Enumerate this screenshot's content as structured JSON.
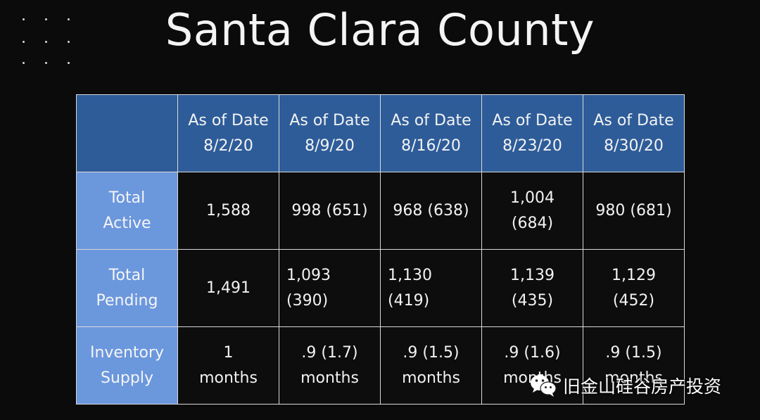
{
  "title": "Santa Clara County",
  "table": {
    "headers": [
      "As of Date\n8/2/20",
      "As of Date\n8/9/20",
      "As of Date\n8/16/20",
      "As of Date\n8/23/20",
      "As of Date\n8/30/20"
    ],
    "rows": [
      {
        "label": "Total\nActive",
        "cells": [
          "1,588",
          "998 (651)",
          "968 (638)",
          "1,004\n(684)",
          "980 (681)"
        ]
      },
      {
        "label": "Total\nPending",
        "cells": [
          "1,491",
          "1,093\n(390)",
          "1,130\n(419)",
          "1,139\n(435)",
          "1,129\n(452)"
        ]
      },
      {
        "label": "Inventory\nSupply",
        "cells": [
          "1\nmonths",
          ".9 (1.7)\nmonths",
          ".9 (1.5)\nmonths",
          ".9 (1.6)\nmonths",
          ".9 (1.5)\nmonths"
        ]
      }
    ]
  },
  "watermark": {
    "text": "旧金山硅谷房产投资",
    "icon": "wechat-icon"
  }
}
